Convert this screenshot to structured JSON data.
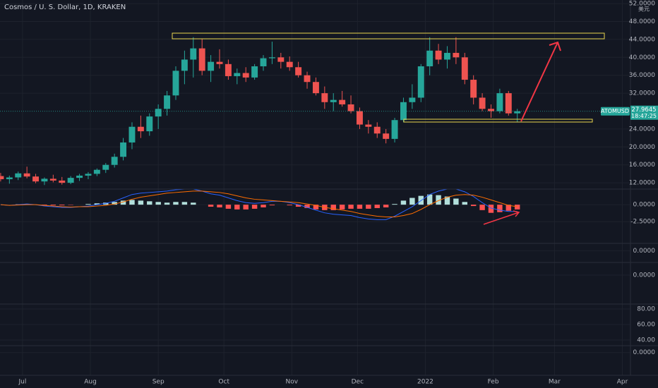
{
  "chart_data": [
    {
      "type": "candlestick",
      "title": "Cosmos / U. S. Dollar, 1D, KRAKEN",
      "symbol": "ATOMUSD",
      "currency": "美元",
      "last_price": 27.9645,
      "countdown": "18:47:25",
      "up_color": "#26a69a",
      "down_color": "#ef5350",
      "grid": true,
      "x": [
        -10,
        -6,
        -2,
        2,
        6,
        10,
        14,
        18,
        22,
        26,
        30,
        34,
        38,
        42,
        46,
        50,
        54,
        58,
        62,
        66,
        70,
        74,
        78,
        82,
        86,
        90,
        94,
        98,
        102,
        106,
        110,
        114,
        118,
        122,
        126,
        130,
        134,
        138,
        142,
        146,
        150,
        154,
        158,
        162,
        166,
        170,
        174,
        178,
        182,
        186,
        190,
        194,
        198,
        202,
        206,
        210,
        214,
        218,
        222,
        226
      ],
      "open": [
        13.5,
        12.8,
        13.2,
        14.1,
        13.4,
        12.3,
        12.9,
        12.5,
        12.0,
        13.1,
        13.6,
        14.0,
        14.9,
        16.0,
        17.8,
        21.0,
        24.5,
        23.5,
        26.8,
        28.5,
        31.5,
        37.0,
        39.5,
        42.0,
        37.0,
        39.0,
        38.5,
        35.8,
        36.5,
        35.5,
        38.0,
        39.8,
        40.0,
        39.0,
        37.8,
        36.0,
        34.5,
        32.0,
        30.0,
        30.5,
        29.5,
        28.0,
        25.0,
        24.5,
        23.0,
        21.8,
        26.0,
        30.0,
        31.0,
        38.0,
        41.5,
        39.5,
        41.0,
        40.0,
        35.0,
        31.0,
        28.5,
        28.0,
        32.0,
        27.5
      ],
      "high": [
        14.2,
        13.6,
        14.5,
        15.6,
        14.0,
        13.2,
        13.8,
        13.3,
        13.5,
        14.0,
        14.4,
        15.2,
        16.4,
        18.5,
        22.0,
        25.5,
        27.0,
        27.5,
        29.5,
        32.5,
        38.0,
        41.5,
        44.5,
        44.2,
        40.5,
        41.8,
        39.5,
        37.5,
        37.8,
        38.5,
        40.5,
        43.5,
        41.0,
        40.2,
        39.0,
        36.8,
        35.5,
        33.5,
        32.0,
        32.5,
        31.5,
        28.8,
        26.0,
        25.5,
        24.0,
        26.5,
        31.0,
        34.0,
        38.5,
        44.5,
        43.0,
        42.5,
        44.5,
        41.0,
        36.0,
        32.0,
        29.5,
        33.0,
        32.5,
        28.5
      ],
      "low": [
        12.3,
        11.8,
        12.6,
        13.0,
        11.9,
        11.5,
        12.1,
        11.6,
        11.7,
        12.4,
        12.8,
        13.5,
        14.2,
        15.4,
        17.0,
        19.5,
        22.0,
        22.5,
        24.0,
        27.0,
        30.5,
        34.0,
        35.5,
        36.0,
        34.5,
        37.5,
        35.0,
        34.0,
        34.5,
        35.0,
        37.0,
        38.5,
        37.5,
        37.0,
        35.5,
        33.0,
        31.5,
        28.5,
        28.0,
        29.0,
        27.5,
        24.0,
        23.0,
        22.0,
        20.8,
        21.0,
        25.5,
        28.5,
        30.0,
        36.0,
        38.5,
        37.5,
        38.5,
        34.0,
        29.5,
        28.0,
        26.5,
        27.5,
        27.0,
        25.5
      ],
      "close": [
        12.8,
        13.2,
        14.1,
        13.4,
        12.3,
        12.9,
        12.5,
        12.0,
        13.1,
        13.6,
        14.0,
        14.9,
        16.0,
        17.8,
        21.0,
        24.5,
        23.5,
        26.8,
        28.5,
        31.5,
        37.0,
        39.5,
        42.0,
        37.0,
        39.0,
        38.5,
        35.8,
        36.5,
        35.5,
        38.0,
        39.8,
        40.0,
        39.0,
        37.8,
        36.0,
        34.5,
        32.0,
        30.0,
        30.5,
        29.5,
        28.0,
        25.0,
        24.5,
        23.0,
        21.8,
        26.0,
        30.0,
        31.0,
        38.0,
        41.5,
        39.5,
        41.0,
        40.0,
        35.0,
        31.0,
        28.5,
        28.0,
        32.0,
        27.5,
        27.9645
      ],
      "xlim": [
        -10.3,
        277.7
      ],
      "xticks": [
        {
          "value": 0,
          "label": "Jul"
        },
        {
          "value": 31,
          "label": "Aug"
        },
        {
          "value": 62,
          "label": "Sep"
        },
        {
          "value": 92,
          "label": "Oct"
        },
        {
          "value": 123,
          "label": "Nov"
        },
        {
          "value": 153,
          "label": "Dec"
        },
        {
          "value": 184,
          "label": "2022"
        },
        {
          "value": 215,
          "label": "Feb"
        },
        {
          "value": 243,
          "label": "Mar"
        },
        {
          "value": 274,
          "label": "Apr"
        }
      ],
      "ylim": [
        10.6,
        52.8
      ],
      "yticks": [
        {
          "value": 12,
          "label": "12.0000"
        },
        {
          "value": 16,
          "label": "16.0000"
        },
        {
          "value": 20,
          "label": "20.0000"
        },
        {
          "value": 24,
          "label": "24.0000"
        },
        {
          "value": 32,
          "label": "32.0000"
        },
        {
          "value": 36,
          "label": "36.0000"
        },
        {
          "value": 40,
          "label": "40.0000"
        },
        {
          "value": 44,
          "label": "44.0000"
        },
        {
          "value": 48,
          "label": "48.0000"
        },
        {
          "value": 52,
          "label": "52.0000"
        }
      ]
    },
    {
      "type": "macd",
      "histogram": [
        0,
        0,
        0.05,
        0.1,
        0,
        -0.1,
        -0.1,
        -0.1,
        -0.05,
        0,
        0.1,
        0.2,
        0.3,
        0.4,
        0.6,
        0.7,
        0.6,
        0.5,
        0.4,
        0.3,
        0.4,
        0.4,
        0.3,
        0,
        -0.3,
        -0.4,
        -0.6,
        -0.7,
        -0.7,
        -0.6,
        -0.4,
        -0.1,
        0,
        -0.1,
        -0.3,
        -0.5,
        -0.7,
        -0.8,
        -0.8,
        -0.7,
        -0.6,
        -0.6,
        -0.6,
        -0.5,
        -0.4,
        0.1,
        0.6,
        1.0,
        1.3,
        1.5,
        1.4,
        1.2,
        0.9,
        0.4,
        -0.2,
        -0.8,
        -1.2,
        -1.1,
        -0.9,
        -0.7
      ],
      "macd": [
        0,
        -0.1,
        0,
        0.1,
        0,
        -0.2,
        -0.3,
        -0.4,
        -0.4,
        -0.3,
        -0.2,
        0,
        0.2,
        0.5,
        1.0,
        1.5,
        1.7,
        1.8,
        1.9,
        2.0,
        2.2,
        2.3,
        2.3,
        2.0,
        1.6,
        1.4,
        1.0,
        0.6,
        0.3,
        0.2,
        0.3,
        0.5,
        0.5,
        0.3,
        0,
        -0.4,
        -0.8,
        -1.2,
        -1.4,
        -1.5,
        -1.6,
        -1.9,
        -2.1,
        -2.2,
        -2.2,
        -1.7,
        -1.0,
        -0.3,
        0.6,
        1.5,
        2.0,
        2.3,
        2.3,
        1.9,
        1.2,
        0.3,
        -0.5,
        -0.8,
        -1.0,
        -1.0
      ],
      "signal": [
        0,
        -0.1,
        -0.05,
        0,
        0,
        -0.1,
        -0.2,
        -0.3,
        -0.35,
        -0.3,
        -0.3,
        -0.2,
        -0.1,
        0.1,
        0.4,
        0.8,
        1.1,
        1.3,
        1.5,
        1.7,
        1.8,
        1.9,
        2.0,
        2.0,
        1.9,
        1.8,
        1.6,
        1.3,
        1.0,
        0.8,
        0.7,
        0.6,
        0.5,
        0.4,
        0.3,
        0.1,
        -0.1,
        -0.4,
        -0.6,
        -0.8,
        -1.0,
        -1.3,
        -1.5,
        -1.7,
        -1.8,
        -1.8,
        -1.6,
        -1.3,
        -0.7,
        0,
        0.6,
        1.1,
        1.4,
        1.5,
        1.4,
        1.1,
        0.7,
        0.3,
        -0.1,
        -0.3
      ],
      "colors": {
        "histogram_up": "#b2dfdb",
        "histogram_down": "#ff5252",
        "macd": "#2962ff",
        "signal": "#ff6d00"
      },
      "ylim": [
        -5.7,
        2.3
      ],
      "yticks": [
        {
          "value": 0,
          "label": "0.0000"
        },
        {
          "value": -2.5,
          "label": "-2.5000"
        }
      ]
    },
    {
      "type": "line",
      "series": [],
      "ylim": [
        -1,
        0.65
      ],
      "yticks": [
        {
          "value": 0,
          "label": "0.0000"
        }
      ]
    },
    {
      "type": "line",
      "series": [],
      "ylim": [
        -1,
        0.9
      ],
      "yticks": [
        {
          "value": 0,
          "label": "0.0000"
        }
      ]
    },
    {
      "type": "line",
      "series": [],
      "ylim": [
        32.7,
        86.4
      ],
      "yticks": [
        {
          "value": 80,
          "label": "80.00"
        },
        {
          "value": 60,
          "label": "60.00"
        },
        {
          "value": 40,
          "label": "40.00"
        }
      ]
    },
    {
      "type": "line",
      "series": [],
      "ylim": [
        -1,
        0.3
      ],
      "yticks": [
        {
          "value": 0,
          "label": "0.0000"
        }
      ]
    }
  ]
}
